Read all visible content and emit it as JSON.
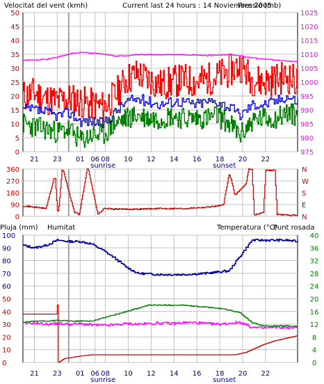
{
  "colors": {
    "wind": "#ff0000",
    "wind_avg": "#0000cc",
    "wind_min": "#008000",
    "pressure": "#ff00ff",
    "direction": "#cc0000",
    "rain": "#cc0000",
    "humidity": "#000099",
    "temperature": "#008000",
    "dewpoint": "#ff00ff",
    "grid": "#c0c0c0",
    "frame": "#000000"
  },
  "chart_data": [
    {
      "type": "line",
      "title_left": "Velocitat del vent (kmh)",
      "title_center": "Current last 24 hours : 14 Noviembre 2005",
      "title_right": "Pressió (mb)",
      "y_left": {
        "min": 0,
        "max": 50,
        "ticks": [
          0,
          5,
          10,
          15,
          20,
          25,
          30,
          35,
          40,
          45,
          50
        ]
      },
      "y_right": {
        "min": 975,
        "max": 1025,
        "ticks": [
          975,
          980,
          985,
          990,
          995,
          1000,
          1005,
          1010,
          1015,
          1020,
          1025
        ]
      },
      "x_ticks": [
        {
          "label": "21",
          "h": 1
        },
        {
          "label": "23",
          "h": 3
        },
        {
          "label": "01",
          "h": 5
        },
        {
          "label": "06",
          "h": 6.3
        },
        {
          "label": "08",
          "h": 7.2
        },
        {
          "label": "10",
          "h": 9.2
        },
        {
          "label": "12",
          "h": 11.2
        },
        {
          "label": "14",
          "h": 13.2
        },
        {
          "label": "16",
          "h": 15.2
        },
        {
          "label": "18",
          "h": 17.2
        },
        {
          "label": "20",
          "h": 19.2
        },
        {
          "label": "22",
          "h": 21.2
        }
      ],
      "sun_labels": [
        {
          "label": "sunrise",
          "h": 7.0
        },
        {
          "label": "sunset",
          "h": 17.6
        }
      ],
      "series": [
        {
          "key": "wind",
          "axis": "left",
          "x": [
            0,
            1,
            2,
            3,
            4,
            5,
            6,
            7,
            8,
            9,
            10,
            11,
            12,
            13,
            14,
            15,
            16,
            17,
            18,
            19,
            20,
            21,
            22,
            23,
            24
          ],
          "y": [
            20,
            21,
            19,
            18,
            19,
            18,
            17,
            16,
            20,
            26,
            28,
            26,
            24,
            25,
            26,
            25,
            26,
            27,
            29,
            31,
            26,
            25,
            26,
            27,
            25
          ]
        },
        {
          "key": "wind_avg",
          "axis": "left",
          "x": [
            0,
            1,
            2,
            3,
            4,
            5,
            6,
            7,
            8,
            9,
            10,
            11,
            12,
            13,
            14,
            15,
            16,
            17,
            18,
            19,
            20,
            21,
            22,
            23,
            24
          ],
          "y": [
            15,
            15,
            14,
            13,
            14,
            11,
            11,
            10,
            14,
            18,
            19,
            18,
            17,
            18,
            18,
            17,
            18,
            18,
            16,
            13,
            17,
            17,
            18,
            20,
            18
          ]
        },
        {
          "key": "wind_min",
          "axis": "left",
          "x": [
            0,
            1,
            2,
            3,
            4,
            5,
            6,
            7,
            8,
            9,
            10,
            11,
            12,
            13,
            14,
            15,
            16,
            17,
            18,
            19,
            20,
            21,
            22,
            23,
            24
          ],
          "y": [
            10,
            9,
            8,
            7,
            8,
            4,
            6,
            6,
            10,
            12,
            13,
            12,
            12,
            13,
            12,
            12,
            12,
            13,
            10,
            6,
            11,
            12,
            12,
            14,
            13
          ]
        },
        {
          "key": "pressure",
          "axis": "right",
          "x": [
            0,
            2,
            3,
            4,
            5,
            6,
            8,
            9,
            10,
            12,
            14,
            16,
            17,
            18,
            19,
            20,
            22,
            24
          ],
          "y": [
            1007.8,
            1008.2,
            1009.0,
            1010.2,
            1010.6,
            1010.4,
            1009.4,
            1009.5,
            1009.9,
            1009.9,
            1009.8,
            1009.6,
            1009.7,
            1010.0,
            1009.4,
            1008.7,
            1007.9,
            1007.3
          ]
        }
      ]
    },
    {
      "type": "line",
      "y_left": {
        "min": 0,
        "max": 360,
        "ticks": [
          0,
          90,
          180,
          270,
          360
        ]
      },
      "y_right_labels": [
        "N",
        "W",
        "S",
        "E",
        "N"
      ],
      "series": [
        {
          "key": "direction",
          "axis": "left",
          "x": [
            0,
            1,
            2,
            2.7,
            2.8,
            3.0,
            3.1,
            3.4,
            3.5,
            4.5,
            4.6,
            4.8,
            4.9,
            5.6,
            5.7,
            6.5,
            6.6,
            7.1,
            7.2,
            8,
            10,
            12,
            14,
            16,
            17.5,
            18.0,
            18.2,
            18.5,
            19.5,
            19.7,
            20.0,
            20.2,
            21.0,
            21.2,
            22.0,
            22.2,
            24
          ],
          "y": [
            80,
            70,
            60,
            290,
            290,
            40,
            45,
            350,
            350,
            25,
            30,
            25,
            10,
            360,
            360,
            25,
            20,
            60,
            60,
            55,
            55,
            60,
            60,
            70,
            85,
            320,
            280,
            160,
            250,
            360,
            360,
            10,
            30,
            350,
            350,
            15,
            5
          ]
        }
      ]
    },
    {
      "type": "line",
      "title_left": "Pluja (mm)",
      "title_left2": "Humitat",
      "title_right": "Temperatura (°C)",
      "title_right2": "Punt rosada",
      "y_left": {
        "min": 0,
        "max": 100,
        "ticks": [
          0,
          10,
          20,
          30,
          40,
          50,
          60,
          70,
          80,
          90,
          100
        ]
      },
      "y_right": {
        "min": 0,
        "max": 40,
        "ticks": [
          0,
          4,
          8,
          12,
          16,
          20,
          24,
          28,
          32,
          36,
          40
        ]
      },
      "series": [
        {
          "key": "humidity",
          "axis": "left",
          "x": [
            0,
            1,
            2,
            3,
            4,
            5,
            6,
            7,
            8,
            9,
            10,
            12,
            14,
            16,
            17,
            18,
            19,
            20,
            21,
            22,
            23,
            24
          ],
          "y": [
            92,
            90,
            92,
            96,
            95,
            95,
            93,
            88,
            82,
            75,
            70,
            69,
            69,
            70,
            71,
            72,
            84,
            96,
            96,
            96,
            96,
            95
          ]
        },
        {
          "key": "temperature",
          "axis": "right",
          "x": [
            0,
            1,
            2,
            3,
            4,
            5,
            6,
            7,
            8,
            9,
            10,
            11,
            12,
            13,
            14,
            15,
            16,
            17,
            18,
            19,
            20,
            21,
            22,
            23,
            24
          ],
          "y": [
            12.5,
            13,
            13,
            13.2,
            13,
            13,
            13,
            14,
            15,
            16,
            17,
            18,
            18,
            18,
            18,
            17.6,
            17.4,
            17,
            16.5,
            15.5,
            12.5,
            11.5,
            11.5,
            11.5,
            11.2
          ]
        },
        {
          "key": "dewpoint",
          "axis": "right",
          "x": [
            0,
            1,
            2,
            3,
            4,
            5,
            6,
            7,
            8,
            9,
            10,
            11,
            12,
            13,
            14,
            15,
            16,
            17,
            18,
            19,
            20,
            21,
            22,
            23,
            24
          ],
          "y": [
            12.3,
            12.4,
            12,
            12.2,
            12,
            12.1,
            11.8,
            11.6,
            11.8,
            12.2,
            12,
            12.2,
            12.4,
            12.2,
            12.5,
            12.5,
            12.2,
            12.0,
            12.3,
            12.6,
            11,
            10.8,
            11.0,
            11,
            10.8
          ]
        },
        {
          "key": "rain",
          "axis": "left",
          "x": [
            0,
            0.1,
            2.9,
            3.0,
            3.1,
            3.6,
            5.0,
            6.0,
            7,
            10,
            12,
            14,
            16,
            18,
            18.5,
            19.5,
            20,
            21,
            22,
            23,
            24
          ],
          "y": [
            38,
            38,
            38,
            45,
            0,
            3,
            5,
            6,
            6,
            6,
            6,
            6,
            6,
            6,
            6,
            8,
            10,
            14,
            17,
            19,
            21
          ]
        }
      ]
    }
  ]
}
